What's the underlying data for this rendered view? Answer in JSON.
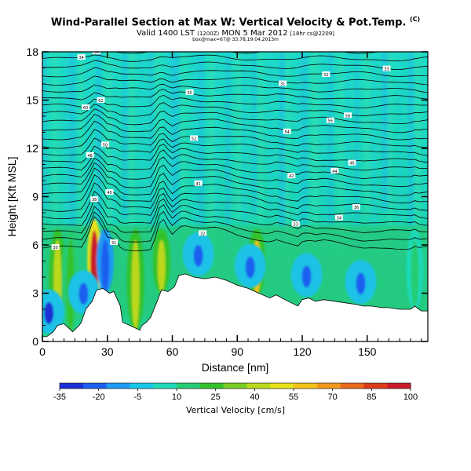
{
  "header": {
    "title": "Wind-Parallel Section at Max W: Vertical Velocity & Pot.Temp.",
    "title_mark": "(C)",
    "valid_prefix": "Valid 1400 LST",
    "valid_small": "(1200Z)",
    "valid_date": "MON 5 Mar 2012",
    "valid_suffix": "[18hr cs@2209]",
    "note": "box@max=67@ 33.78,19.04,2013m"
  },
  "chart_data": {
    "type": "heatmap",
    "title": "Wind-Parallel Section at Max W: Vertical Velocity & Pot.Temp.",
    "xlabel": "Distance [nm]",
    "ylabel": "Height [Kft MSL]",
    "xlim": [
      0,
      178
    ],
    "ylim": [
      0,
      18
    ],
    "xticks": [
      "0",
      "30",
      "60",
      "90",
      "120",
      "150"
    ],
    "yticks": [
      "0",
      "3",
      "6",
      "9",
      "12",
      "15",
      "18"
    ],
    "colorbar": {
      "label": "Vertical Velocity [cm/s]",
      "ticks": [
        "-35",
        "-20",
        "-5",
        "10",
        "25",
        "40",
        "55",
        "70",
        "85",
        "100"
      ],
      "colors": [
        "#1a2ed6",
        "#1f5ff0",
        "#1e9af2",
        "#18c8e8",
        "#1fd9b8",
        "#28cc72",
        "#33c22a",
        "#78cc22",
        "#bcd81e",
        "#e6e21a",
        "#f2c21a",
        "#f29a1c",
        "#ea6a1c",
        "#dc3c1c",
        "#c71c2a"
      ]
    },
    "terrain": {
      "x": [
        0,
        2,
        5,
        7,
        10,
        14,
        17,
        18,
        20,
        23,
        25,
        28,
        31,
        33,
        36,
        37,
        42,
        45,
        46,
        48,
        50,
        53,
        55,
        58,
        61,
        63,
        66,
        70,
        75,
        80,
        85,
        90,
        95,
        100,
        105,
        108,
        112,
        115,
        118,
        120,
        123,
        126,
        130,
        135,
        140,
        145,
        148,
        152,
        157,
        160,
        165,
        170,
        172,
        175,
        178
      ],
      "y": [
        0.3,
        0.3,
        0.6,
        1.0,
        1.1,
        0.6,
        1.0,
        1.2,
        2.0,
        2.5,
        3.2,
        3.3,
        3.0,
        3.1,
        2.2,
        1.2,
        0.9,
        0.7,
        1.0,
        1.2,
        1.5,
        2.5,
        3.2,
        3.1,
        3.4,
        4.1,
        4.2,
        4.0,
        3.9,
        4.0,
        3.8,
        3.5,
        3.3,
        3.0,
        2.7,
        2.9,
        2.6,
        2.4,
        2.2,
        2.6,
        2.7,
        2.5,
        2.6,
        2.5,
        2.4,
        2.3,
        2.2,
        2.2,
        2.1,
        2.1,
        2.0,
        2.0,
        2.2,
        1.9,
        1.9
      ]
    },
    "isentropes": {
      "levels": 26,
      "labels": [
        "30",
        "31",
        "32",
        "33",
        "34",
        "36",
        "38",
        "40",
        "41",
        "42",
        "44",
        "46",
        "48",
        "50",
        "52",
        "54",
        "56",
        "58",
        "60",
        "62"
      ]
    },
    "updrafts": [
      {
        "x": 7,
        "value": 40
      },
      {
        "x": 13,
        "value": 25
      },
      {
        "x": 24,
        "value": 95
      },
      {
        "x": 29,
        "value": -20
      },
      {
        "x": 43,
        "value": 40
      },
      {
        "x": 55,
        "value": 45
      },
      {
        "x": 99,
        "value": 55
      },
      {
        "x": 172,
        "value": 10
      }
    ],
    "downdrafts": [
      {
        "x": 3,
        "value": -35
      },
      {
        "x": 19,
        "value": -25
      },
      {
        "x": 72,
        "value": -20
      },
      {
        "x": 96,
        "value": -20
      },
      {
        "x": 122,
        "value": -20
      },
      {
        "x": 147,
        "value": -20
      }
    ]
  }
}
